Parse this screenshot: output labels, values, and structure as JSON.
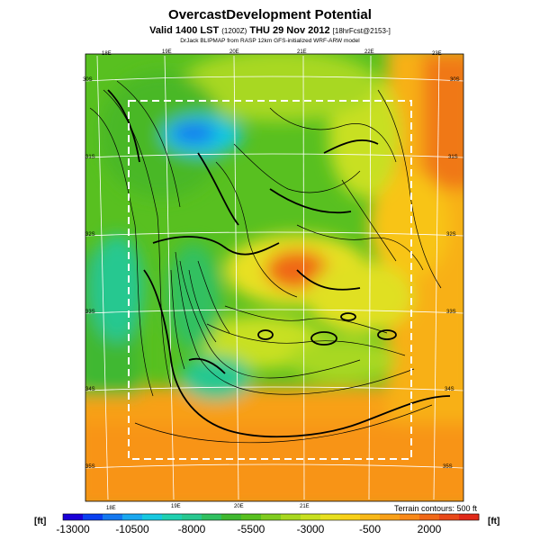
{
  "title": "OvercastDevelopment Potential",
  "subtitle": {
    "main": "Valid 1400 LST",
    "small1": "(1200Z)",
    "date": "THU 29 Nov 2012",
    "small2": "[18hrFcst@2153-]"
  },
  "credit": "DrJack BLIPMAP from RASP 12km GFS-initialized WRF-ARW model",
  "lon_labels_top": [
    "18E",
    "19E",
    "20E",
    "21E",
    "22E",
    "23E"
  ],
  "lon_labels_bottom": [
    "18E",
    "19E",
    "20E",
    "21E"
  ],
  "lat_labels_left": [
    "30S",
    "31S",
    "32S",
    "33S",
    "34S",
    "35S"
  ],
  "lat_labels_right": [
    "30S",
    "31S",
    "32S",
    "33S",
    "34S",
    "35S"
  ],
  "terrain_note": "Terrain contours: 500 ft",
  "unit_left": "[ft]",
  "unit_right": "[ft]",
  "colorbar": {
    "labels": [
      "-13000",
      "-10500",
      "-8000",
      "-5500",
      "-3000",
      "-500",
      "2000"
    ],
    "colors": [
      "#1a00d8",
      "#0a40f0",
      "#1478f0",
      "#1aa8f0",
      "#18c8e0",
      "#20d0b0",
      "#28c890",
      "#30c060",
      "#40b830",
      "#58c020",
      "#80cc20",
      "#a8d820",
      "#c8e020",
      "#e8e020",
      "#f8d018",
      "#f8b818",
      "#f8a018",
      "#f88818",
      "#f06818",
      "#e84818",
      "#e02818"
    ]
  }
}
